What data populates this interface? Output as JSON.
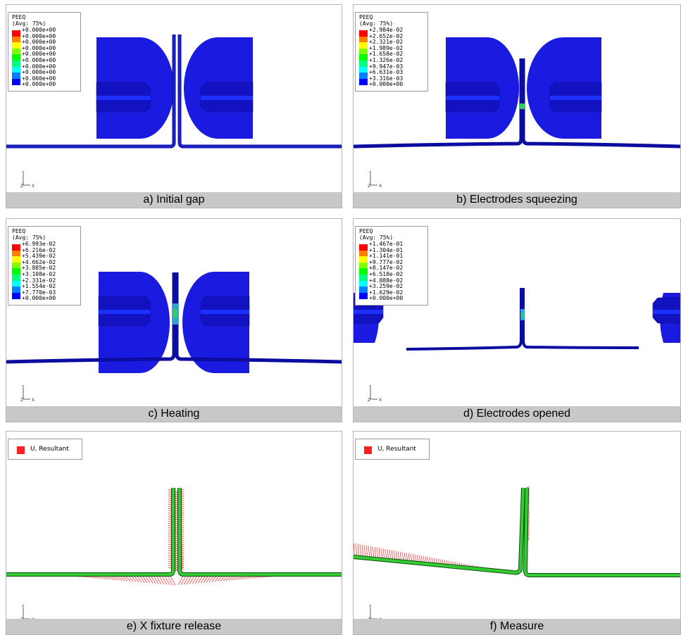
{
  "colors": {
    "electrode": "#1a1ae0",
    "electrode_dark": "#0f0fb8",
    "sheet": "#1a22c8",
    "arrow": "#ff2020",
    "green": "#33cc33",
    "caption_bg": "#c8c8c8"
  },
  "legend_colors": [
    "#ff0000",
    "#ff7f00",
    "#ffff00",
    "#7fff00",
    "#00ff00",
    "#00ff7f",
    "#00ffff",
    "#007fff",
    "#0000ff"
  ],
  "triad": {
    "y": "Y",
    "z": "Z",
    "x": "X"
  },
  "panels": [
    {
      "caption": "a) Initial gap",
      "legend": {
        "title": "PEEQ",
        "avg": "(Avg: 75%)",
        "values": [
          "+0.000e+00",
          "+0.000e+00",
          "+0.000e+00",
          "+0.000e+00",
          "+0.000e+00",
          "+0.000e+00",
          "+0.000e+00",
          "+0.000e+00",
          "+0.000e+00",
          "+0.000e+00"
        ]
      }
    },
    {
      "caption": "b) Electrodes squeezing",
      "legend": {
        "title": "PEEQ",
        "avg": "(Avg: 75%)",
        "values": [
          "+2.984e-02",
          "+2.652e-02",
          "+2.321e-02",
          "+1.989e-02",
          "+1.658e-02",
          "+1.326e-02",
          "+9.947e-03",
          "+6.631e-03",
          "+3.316e-03",
          "+0.000e+00"
        ]
      }
    },
    {
      "caption": "c) Heating",
      "legend": {
        "title": "PEEQ",
        "avg": "(Avg: 75%)",
        "values": [
          "+6.993e-02",
          "+6.216e-02",
          "+5.439e-02",
          "+4.662e-02",
          "+3.885e-02",
          "+3.108e-02",
          "+2.331e-02",
          "+1.554e-02",
          "+7.770e-03",
          "+0.000e+00"
        ]
      }
    },
    {
      "caption": "d) Electrodes opened",
      "legend": {
        "title": "PEEQ",
        "avg": "(Avg: 75%)",
        "values": [
          "+1.467e-01",
          "+1.304e-01",
          "+1.141e-01",
          "+9.777e-02",
          "+8.147e-02",
          "+6.518e-02",
          "+4.888e-02",
          "+3.259e-02",
          "+1.629e-02",
          "+0.000e+00"
        ]
      }
    },
    {
      "caption": "e) X fixture release",
      "ulegend": {
        "label": "U, Resultant"
      }
    },
    {
      "caption": "f) Measure",
      "ulegend": {
        "label": "U, Resultant"
      }
    }
  ]
}
